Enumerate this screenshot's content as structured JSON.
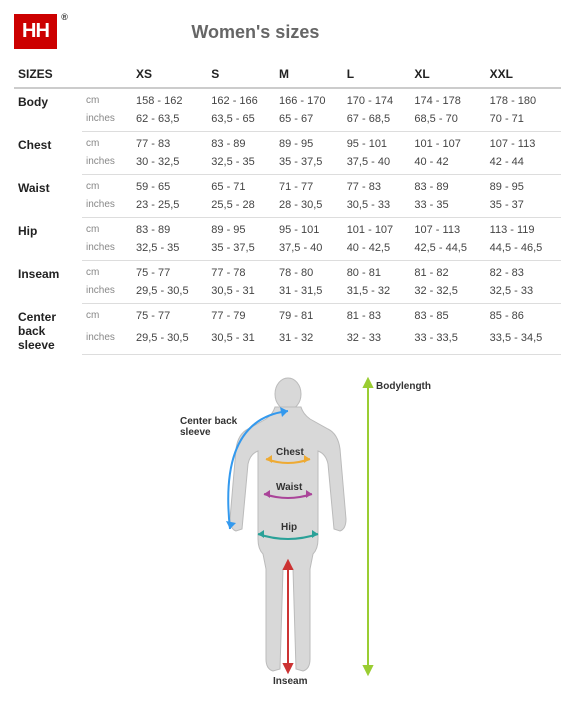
{
  "logo_text": "HH",
  "title": "Women's sizes",
  "columns": [
    "SIZES",
    "XS",
    "S",
    "M",
    "L",
    "XL",
    "XXL"
  ],
  "rows": [
    {
      "label": "Body",
      "cm": [
        "158 - 162",
        "162 - 166",
        "166 - 170",
        "170 - 174",
        "174 - 178",
        "178 - 180"
      ],
      "in": [
        "62 - 63,5",
        "63,5 - 65",
        "65 - 67",
        "67 - 68,5",
        "68,5 - 70",
        "70 - 71"
      ]
    },
    {
      "label": "Chest",
      "cm": [
        "77 - 83",
        "83 - 89",
        "89 - 95",
        "95 - 101",
        "101 - 107",
        "107 - 113"
      ],
      "in": [
        "30 - 32,5",
        "32,5 - 35",
        "35 - 37,5",
        "37,5 - 40",
        "40 - 42",
        "42 - 44"
      ]
    },
    {
      "label": "Waist",
      "cm": [
        "59 - 65",
        "65 - 71",
        "71 - 77",
        "77 - 83",
        "83 - 89",
        "89 - 95"
      ],
      "in": [
        "23 - 25,5",
        "25,5 - 28",
        "28 - 30,5",
        "30,5 - 33",
        "33 - 35",
        "35 - 37"
      ]
    },
    {
      "label": "Hip",
      "cm": [
        "83 - 89",
        "89 - 95",
        "95 - 101",
        "101 - 107",
        "107 - 113",
        "113 - 119"
      ],
      "in": [
        "32,5 - 35",
        "35 - 37,5",
        "37,5 - 40",
        "40 - 42,5",
        "42,5 - 44,5",
        "44,5 - 46,5"
      ]
    },
    {
      "label": "Inseam",
      "cm": [
        "75 - 77",
        "77 - 78",
        "78 - 80",
        "80 - 81",
        "81 - 82",
        "82 - 83"
      ],
      "in": [
        "29,5 - 30,5",
        "30,5 - 31",
        "31 - 31,5",
        "31,5 - 32",
        "32 - 32,5",
        "32,5 - 33"
      ]
    },
    {
      "label": "Center back sleeve",
      "cm": [
        "75 - 77",
        "77 - 79",
        "79 - 81",
        "81 - 83",
        "83 - 85",
        "85 - 86"
      ],
      "in": [
        "29,5 - 30,5",
        "30,5 - 31",
        "31 - 32",
        "32 - 33",
        "33 - 33,5",
        "33,5 - 34,5"
      ]
    }
  ],
  "unit_cm": "cm",
  "unit_in": "inches",
  "figure_labels": {
    "bodylength": "Bodylength",
    "center_back_sleeve": "Center back sleeve",
    "chest": "Chest",
    "waist": "Waist",
    "hip": "Hip",
    "inseam": "Inseam"
  },
  "colors": {
    "logo_bg": "#cc0000",
    "body_fill": "#d8d8d8",
    "body_stroke": "#bbbbbb",
    "bodylength": "#9acd32",
    "center_back": "#3399ee",
    "chest": "#eeaa33",
    "waist": "#aa4499",
    "hip": "#2aa198",
    "inseam": "#cc3333"
  }
}
